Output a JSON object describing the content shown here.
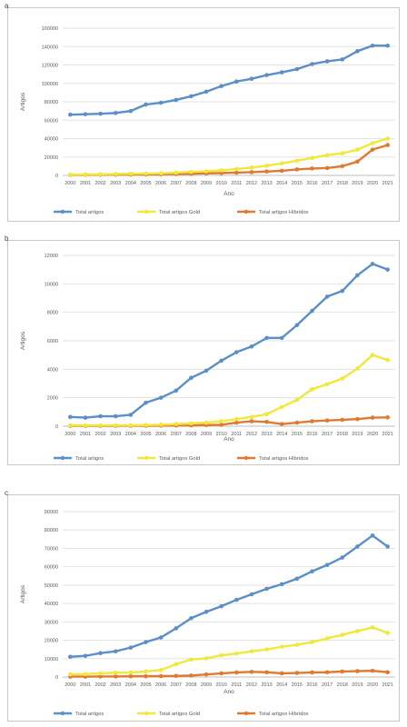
{
  "chart_data": [
    {
      "type": "line",
      "panel_label": "a",
      "xlabel": "Ano",
      "ylabel": "Artigos",
      "ylim": [
        0,
        160000
      ],
      "yticks": [
        "0",
        "20000",
        "40000",
        "60000",
        "80000",
        "100000",
        "120000",
        "140000",
        "160000"
      ],
      "grid": true,
      "legend": "bottom",
      "categories": [
        "2000",
        "2001",
        "2002",
        "2003",
        "2004",
        "2005",
        "2006",
        "2007",
        "2008",
        "2009",
        "2010",
        "2011",
        "2012",
        "2013",
        "2014",
        "2015",
        "2016",
        "2017",
        "2018",
        "2019",
        "2020",
        "2021"
      ],
      "series": [
        {
          "name": "Total artigos",
          "color": "#5b8fc7",
          "values": [
            66000,
            66500,
            67000,
            67800,
            70000,
            77000,
            79000,
            82000,
            86000,
            91000,
            97000,
            102000,
            105000,
            109000,
            112000,
            115500,
            121000,
            124000,
            126000,
            135000,
            141000,
            141000
          ]
        },
        {
          "name": "Total artigos Gold",
          "color": "#f0e83a",
          "values": [
            800,
            1000,
            1200,
            1500,
            1800,
            2000,
            2300,
            3000,
            3800,
            4500,
            5500,
            7000,
            8500,
            10500,
            13000,
            16000,
            19000,
            22000,
            24000,
            28000,
            35000,
            40000
          ]
        },
        {
          "name": "Total artigos Híbridos",
          "color": "#e07a30",
          "values": [
            500,
            600,
            700,
            800,
            900,
            1000,
            1200,
            1500,
            1800,
            2200,
            2600,
            3000,
            3500,
            4200,
            5000,
            6500,
            7500,
            8000,
            10000,
            15000,
            28000,
            33000
          ]
        }
      ]
    },
    {
      "type": "line",
      "panel_label": "b",
      "xlabel": "Ano",
      "ylabel": "Artigos",
      "ylim": [
        0,
        12000
      ],
      "yticks": [
        "0",
        "2000",
        "4000",
        "6000",
        "8000",
        "10000",
        "12000"
      ],
      "grid": true,
      "legend": "bottom",
      "categories": [
        "2000",
        "2001",
        "2002",
        "2003",
        "2004",
        "2005",
        "2006",
        "2007",
        "2008",
        "2009",
        "2010",
        "2011",
        "2012",
        "2013",
        "2014",
        "2015",
        "2016",
        "2017",
        "2018",
        "2019",
        "2020",
        "2021"
      ],
      "series": [
        {
          "name": "Total artigos",
          "color": "#5b8fc7",
          "values": [
            650,
            600,
            700,
            700,
            800,
            1650,
            2000,
            2500,
            3400,
            3900,
            4600,
            5200,
            5600,
            6200,
            6200,
            7100,
            8100,
            9100,
            9500,
            10600,
            11400,
            11000
          ]
        },
        {
          "name": "Total artigos Gold",
          "color": "#f0e83a",
          "values": [
            50,
            50,
            50,
            50,
            60,
            80,
            100,
            150,
            200,
            250,
            350,
            500,
            650,
            850,
            1350,
            1850,
            2600,
            2950,
            3350,
            4050,
            5000,
            4650
          ]
        },
        {
          "name": "Total artigos Híbridos",
          "color": "#e07a30",
          "values": [
            20,
            20,
            20,
            20,
            25,
            30,
            40,
            50,
            60,
            80,
            100,
            250,
            350,
            300,
            150,
            250,
            350,
            400,
            450,
            500,
            600,
            620
          ]
        }
      ]
    },
    {
      "type": "line",
      "panel_label": "c",
      "xlabel": "Ano",
      "ylabel": "Artigos",
      "ylim": [
        0,
        90000
      ],
      "yticks": [
        "0",
        "10000",
        "20000",
        "30000",
        "40000",
        "50000",
        "60000",
        "70000",
        "80000",
        "90000"
      ],
      "grid": true,
      "legend": "bottom",
      "categories": [
        "2000",
        "2001",
        "2002",
        "2003",
        "2004",
        "2005",
        "2006",
        "2007",
        "2008",
        "2009",
        "2010",
        "2011",
        "2012",
        "2013",
        "2014",
        "2015",
        "2016",
        "2017",
        "2018",
        "2019",
        "2020",
        "2021"
      ],
      "series": [
        {
          "name": "Total artigos",
          "color": "#5b8fc7",
          "values": [
            11000,
            11500,
            13000,
            14000,
            16000,
            19000,
            21500,
            26500,
            32000,
            35500,
            38500,
            42000,
            45000,
            48000,
            50500,
            53500,
            57500,
            61000,
            65000,
            71000,
            77000,
            71000
          ]
        },
        {
          "name": "Total artigos Gold",
          "color": "#f0e83a",
          "values": [
            1500,
            1600,
            2000,
            2300,
            2500,
            3000,
            3800,
            7000,
            9500,
            10200,
            11800,
            12800,
            14000,
            15000,
            16500,
            17500,
            19000,
            21000,
            23000,
            25000,
            27000,
            24000
          ]
        },
        {
          "name": "Total artigos Híbridos",
          "color": "#e07a30",
          "values": [
            200,
            200,
            300,
            300,
            400,
            400,
            500,
            600,
            800,
            1400,
            2000,
            2500,
            2800,
            2600,
            2000,
            2200,
            2500,
            2600,
            3000,
            3200,
            3400,
            2600
          ]
        }
      ]
    }
  ]
}
